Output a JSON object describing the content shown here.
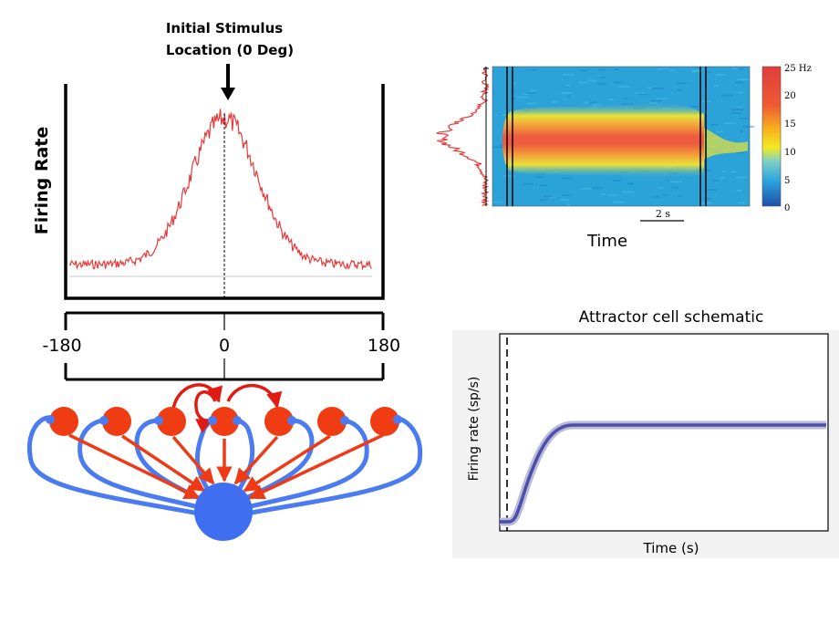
{
  "left_panel": {
    "stimulus_label_line1": "Initial Stimulus",
    "stimulus_label_line2": "Location (0 Deg)",
    "ylabel": "Firing Rate",
    "axis_ticks": [
      "-180",
      "0",
      "180"
    ],
    "trace_color": "#e8393a"
  },
  "network": {
    "excitatory_color": "#ef3c12",
    "inhibitory_color": "#3f6ff0",
    "arrow_color": "#ee3a16",
    "feedback_color": "#4a7bf0",
    "recurrent_color": "#e11b14",
    "excitatory_cell_count": 7
  },
  "heatmap_panel": {
    "xlabel": "Time",
    "scalebar_label": "2 s",
    "colorbar_ticks": [
      "25 Hz",
      "20",
      "15",
      "10",
      "5",
      "0"
    ],
    "colorbar_range": [
      0,
      25
    ]
  },
  "schematic_panel": {
    "title": "Attractor cell schematic",
    "xlabel": "Time (s)",
    "ylabel": "Firing rate (sp/s)",
    "line_color": "#4b4fa8"
  }
}
